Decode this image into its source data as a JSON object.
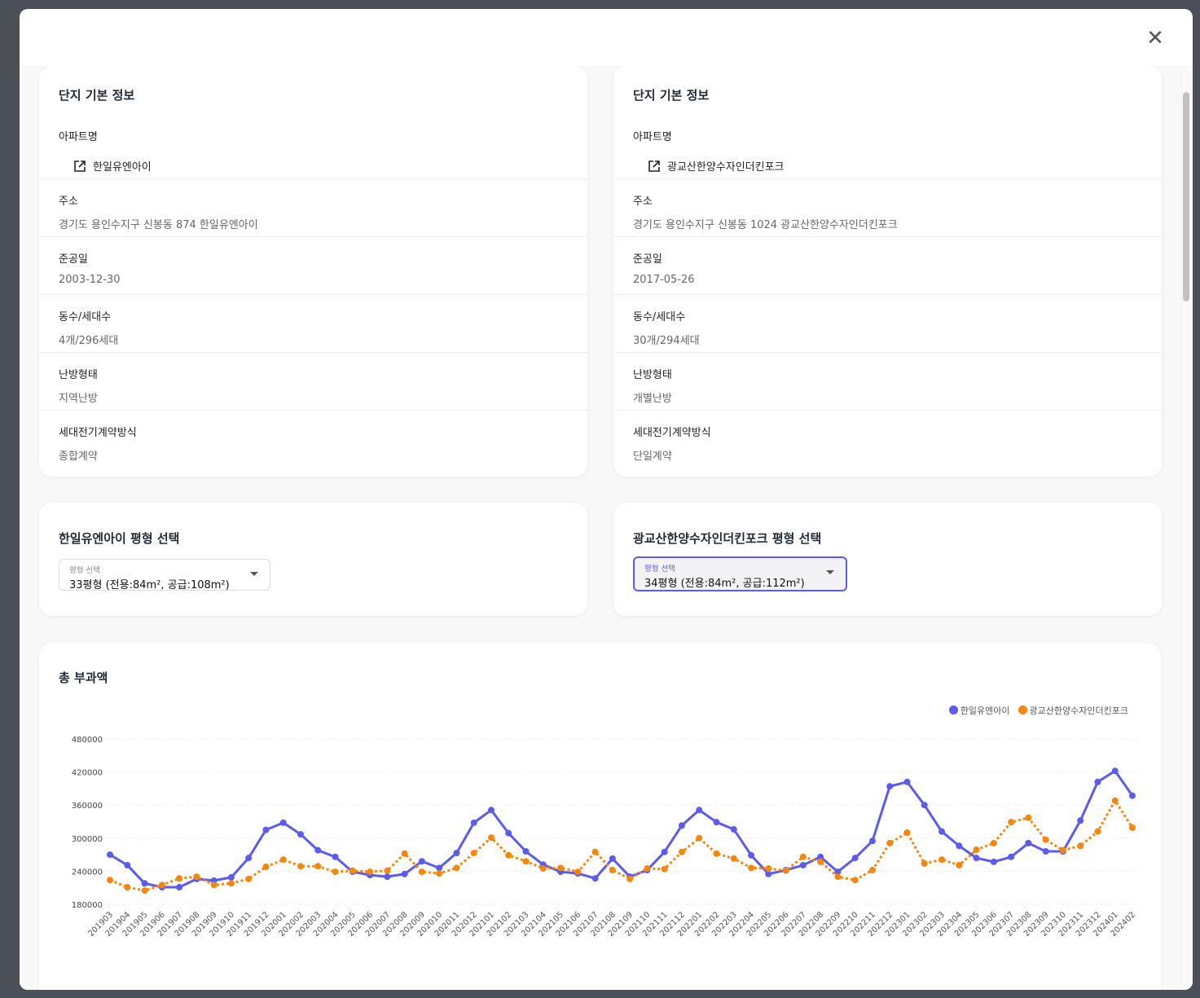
{
  "modal": {
    "close_icon": "close-icon"
  },
  "left": {
    "title": "단지 기본 정보",
    "name_label": "아파트명",
    "name": "한일유엔아이",
    "fields": [
      {
        "label": "주소",
        "value": "경기도 용인수지구 신봉동 874 한일유엔아이"
      },
      {
        "label": "준공일",
        "value": "2003-12-30"
      },
      {
        "label": "동수/세대수",
        "value": "4개/296세대"
      },
      {
        "label": "난방형태",
        "value": "지역난방"
      },
      {
        "label": "세대전기계약방식",
        "value": "종합계약"
      }
    ],
    "select_title": "한일유엔아이 평형 선택",
    "select_label": "평형 선택",
    "select_value": "33평형 (전용:84m², 공급:108m²)"
  },
  "right": {
    "title": "단지 기본 정보",
    "name_label": "아파트명",
    "name": "광교산한양수자인더킨포크",
    "fields": [
      {
        "label": "주소",
        "value": "경기도 용인수지구 신봉동 1024 광교산한양수자인더킨포크"
      },
      {
        "label": "준공일",
        "value": "2017-05-26"
      },
      {
        "label": "동수/세대수",
        "value": "30개/294세대"
      },
      {
        "label": "난방형태",
        "value": "개별난방"
      },
      {
        "label": "세대전기계약방식",
        "value": "단일계약"
      }
    ],
    "select_title": "광교산한양수자인더킨포크 평형 선택",
    "select_label": "평형 선택",
    "select_value": "34평형 (전용:84m², 공급:112m²)"
  },
  "chart_data": {
    "type": "line",
    "title": "총 부과액",
    "ylim": [
      180000,
      480000
    ],
    "yticks": [
      180000,
      240000,
      300000,
      360000,
      420000,
      480000
    ],
    "grid": true,
    "legend": "top-right",
    "categories": [
      "201903",
      "201904",
      "201905",
      "201906",
      "201907",
      "201908",
      "201909",
      "201910",
      "201911",
      "201912",
      "202001",
      "202002",
      "202003",
      "202004",
      "202005",
      "202006",
      "202007",
      "202008",
      "202009",
      "202010",
      "202011",
      "202012",
      "202101",
      "202102",
      "202103",
      "202104",
      "202105",
      "202106",
      "202107",
      "202108",
      "202109",
      "202110",
      "202111",
      "202112",
      "202201",
      "202202",
      "202203",
      "202204",
      "202205",
      "202206",
      "202207",
      "202208",
      "202209",
      "202210",
      "202211",
      "202212",
      "202301",
      "202302",
      "202303",
      "202304",
      "202305",
      "202306",
      "202307",
      "202308",
      "202309",
      "202310",
      "202311",
      "202312",
      "202401",
      "202402"
    ],
    "series": [
      {
        "name": "한일유엔아이",
        "color": "#5b5bef",
        "style": "solid",
        "values": [
          270000,
          251000,
          218000,
          211000,
          211000,
          226000,
          223000,
          229000,
          264000,
          315000,
          328000,
          307000,
          278000,
          266000,
          239000,
          233000,
          230000,
          235000,
          258000,
          246000,
          273000,
          328000,
          351000,
          309000,
          276000,
          252000,
          239000,
          236000,
          227000,
          263000,
          230000,
          242000,
          275000,
          323000,
          351000,
          329000,
          316000,
          269000,
          235000,
          242000,
          251000,
          266000,
          239000,
          264000,
          295000,
          394000,
          402000,
          360000,
          312000,
          286000,
          264000,
          257000,
          266000,
          291000,
          276000,
          276000,
          332000,
          402000,
          422000,
          377000
        ]
      },
      {
        "name": "광교산한양수자인더킨포크",
        "color": "#f5870f",
        "style": "dotted",
        "values": [
          224000,
          211000,
          205000,
          215000,
          227000,
          230000,
          215000,
          218000,
          226000,
          248000,
          261000,
          249000,
          249000,
          239000,
          241000,
          239000,
          241000,
          272000,
          239000,
          236000,
          246000,
          273000,
          301000,
          269000,
          258000,
          245000,
          246000,
          239000,
          275000,
          242000,
          226000,
          245000,
          244000,
          275000,
          300000,
          272000,
          263000,
          246000,
          245000,
          241000,
          266000,
          257000,
          230000,
          224000,
          242000,
          291000,
          310000,
          254000,
          261000,
          251000,
          279000,
          291000,
          329000,
          337000,
          297000,
          278000,
          286000,
          312000,
          368000,
          319000
        ]
      }
    ]
  }
}
